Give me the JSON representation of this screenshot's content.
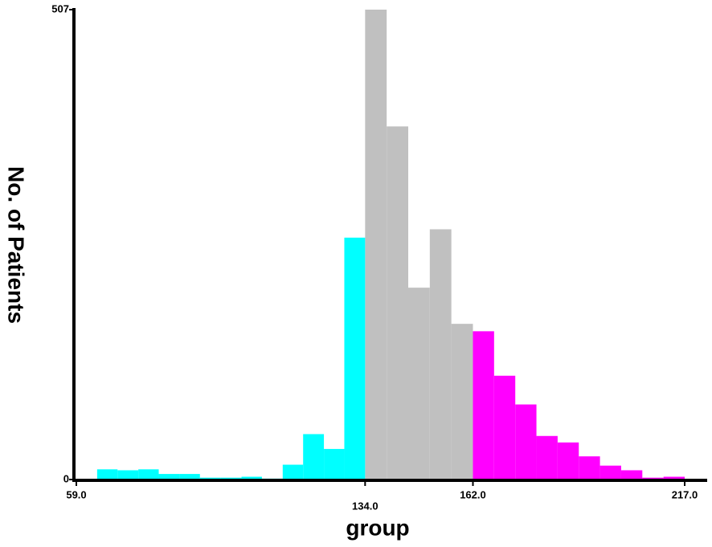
{
  "chart_data": {
    "type": "histogram",
    "x_label": "group",
    "y_label": "No. of Patients",
    "bins": [
      59,
      64.4,
      69.7,
      75.1,
      80.4,
      85.8,
      91.1,
      96.5,
      101.9,
      107.2,
      112.6,
      117.9,
      123.3,
      128.6,
      134,
      139.6,
      145.2,
      150.8,
      156.4,
      162,
      167.5,
      173,
      178.5,
      184,
      189.5,
      195,
      200.5,
      206,
      211.5,
      217
    ],
    "values": [
      0,
      11,
      10,
      11,
      6,
      6,
      2,
      2,
      3,
      1,
      16,
      49,
      33,
      261,
      507,
      381,
      207,
      270,
      168,
      160,
      112,
      81,
      47,
      40,
      25,
      15,
      10,
      2,
      3
    ],
    "colors": [
      "#00ffff",
      "#00ffff",
      "#00ffff",
      "#00ffff",
      "#00ffff",
      "#00ffff",
      "#00ffff",
      "#00ffff",
      "#00ffff",
      "#00ffff",
      "#00ffff",
      "#00ffff",
      "#00ffff",
      "#00ffff",
      "#c0c0c0",
      "#c0c0c0",
      "#c0c0c0",
      "#c0c0c0",
      "#c0c0c0",
      "#ff00ff",
      "#ff00ff",
      "#ff00ff",
      "#ff00ff",
      "#ff00ff",
      "#ff00ff",
      "#ff00ff",
      "#ff00ff",
      "#ff00ff",
      "#ff00ff"
    ],
    "xlim": [
      59,
      217
    ],
    "ylim": [
      0,
      507
    ],
    "xticks": [
      {
        "value": 59,
        "label": "59.0"
      },
      {
        "value": 134,
        "label": "134.0"
      },
      {
        "value": 162,
        "label": "162.0"
      },
      {
        "value": 217,
        "label": "217.0"
      }
    ],
    "yticks": [
      0,
      507
    ],
    "grid": false
  }
}
